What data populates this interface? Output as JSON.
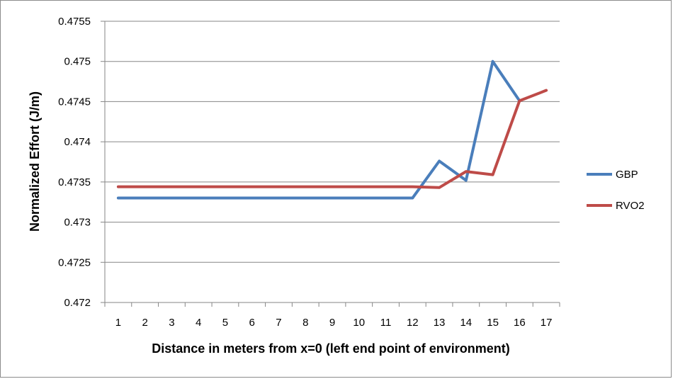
{
  "chart_data": {
    "type": "line",
    "title": "",
    "xlabel": "Distance in meters from x=0 (left end point of environment)",
    "ylabel": "Normalized Effort (J/m)",
    "categories": [
      "1",
      "2",
      "3",
      "4",
      "5",
      "6",
      "7",
      "8",
      "9",
      "10",
      "11",
      "12",
      "13",
      "14",
      "15",
      "16",
      "17"
    ],
    "ylim": [
      0.472,
      0.4755
    ],
    "yticks": [
      "0.472",
      "0.4725",
      "0.473",
      "0.4735",
      "0.474",
      "0.4745",
      "0.475",
      "0.4755"
    ],
    "grid": "horizontal",
    "legend_position": "right",
    "series": [
      {
        "name": "GBP",
        "color": "#4a7ebb",
        "values": [
          0.4733,
          0.4733,
          0.4733,
          0.4733,
          0.4733,
          0.4733,
          0.4733,
          0.4733,
          0.4733,
          0.4733,
          0.4733,
          0.4733,
          0.47376,
          0.47352,
          0.475,
          0.47451,
          null
        ]
      },
      {
        "name": "RVO2",
        "color": "#be4b48",
        "values": [
          0.47344,
          0.47344,
          0.47344,
          0.47344,
          0.47344,
          0.47344,
          0.47344,
          0.47344,
          0.47344,
          0.47344,
          0.47344,
          0.47344,
          0.47343,
          0.47363,
          0.47359,
          0.47451,
          0.47464
        ]
      }
    ]
  }
}
